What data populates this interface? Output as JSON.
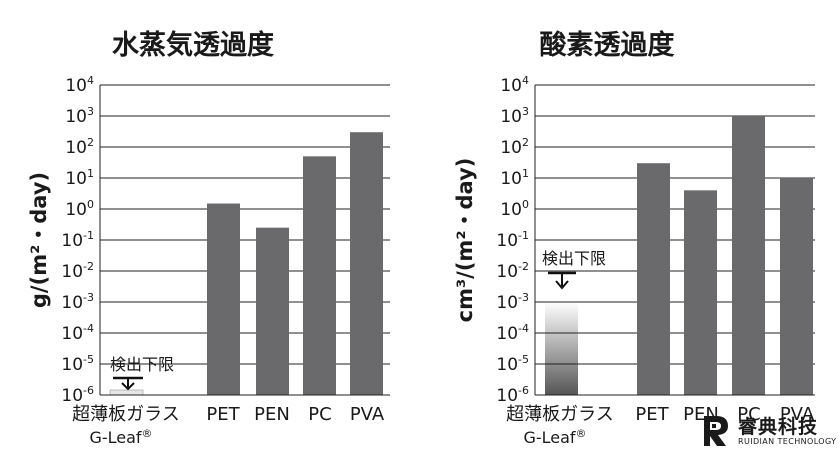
{
  "chart_data": [
    {
      "type": "bar",
      "title": "水蒸気透過度",
      "ylabel": "g/(m²・day)",
      "yscale": "log",
      "ylim": [
        1e-06,
        10000
      ],
      "yticks": [
        {
          "base": "10",
          "exp": "4"
        },
        {
          "base": "10",
          "exp": "3"
        },
        {
          "base": "10",
          "exp": "2"
        },
        {
          "base": "10",
          "exp": "1"
        },
        {
          "base": "10",
          "exp": "0"
        },
        {
          "base": "10",
          "exp": "-1"
        },
        {
          "base": "10",
          "exp": "-2"
        },
        {
          "base": "10",
          "exp": "-3"
        },
        {
          "base": "10",
          "exp": "-4"
        },
        {
          "base": "10",
          "exp": "-5"
        },
        {
          "base": "10",
          "exp": "-6"
        }
      ],
      "categories": [
        "超薄板ガラス G-Leaf®",
        "PET",
        "PEN",
        "PC",
        "PVA"
      ],
      "category_labels": [
        {
          "line1": "超薄板ガラス",
          "line2": "G-Leaf",
          "mark": "®"
        },
        {
          "line1": "PET"
        },
        {
          "line1": "PEN"
        },
        {
          "line1": "PC"
        },
        {
          "line1": "PVA"
        }
      ],
      "values": [
        null,
        1.5,
        0.25,
        50,
        300
      ],
      "detection_limit": {
        "label": "検出下限",
        "value": 1e-06
      },
      "grid": true
    },
    {
      "type": "bar",
      "title": "酸素透過度",
      "ylabel": "cm³/(m²・day)",
      "yscale": "log",
      "ylim": [
        1e-06,
        10000
      ],
      "yticks": [
        {
          "base": "10",
          "exp": "4"
        },
        {
          "base": "10",
          "exp": "3"
        },
        {
          "base": "10",
          "exp": "2"
        },
        {
          "base": "10",
          "exp": "1"
        },
        {
          "base": "10",
          "exp": "0"
        },
        {
          "base": "10",
          "exp": "-1"
        },
        {
          "base": "10",
          "exp": "-2"
        },
        {
          "base": "10",
          "exp": "-3"
        },
        {
          "base": "10",
          "exp": "-4"
        },
        {
          "base": "10",
          "exp": "-5"
        },
        {
          "base": "10",
          "exp": "-6"
        }
      ],
      "categories": [
        "超薄板ガラス G-Leaf®",
        "PET",
        "PEN",
        "PC",
        "PVA"
      ],
      "category_labels": [
        {
          "line1": "超薄板ガラス",
          "line2": "G-Leaf",
          "mark": "®"
        },
        {
          "line1": "PET"
        },
        {
          "line1": "PEN"
        },
        {
          "line1": "PC"
        },
        {
          "line1": "PVA"
        }
      ],
      "values": [
        null,
        30,
        4,
        1000,
        10
      ],
      "detection_limit": {
        "label": "検出下限",
        "value": 0.001
      },
      "grid": true
    }
  ],
  "logo": {
    "name_cn": "睿典科技",
    "name_en": "RUIDIAN TECHNOLOGY",
    "icon": "ruidian-logo-icon",
    "color": "#1a1a1a"
  },
  "colors": {
    "bar": "#6a6a6c",
    "grid": "#222222",
    "text": "#1a1a1a"
  }
}
